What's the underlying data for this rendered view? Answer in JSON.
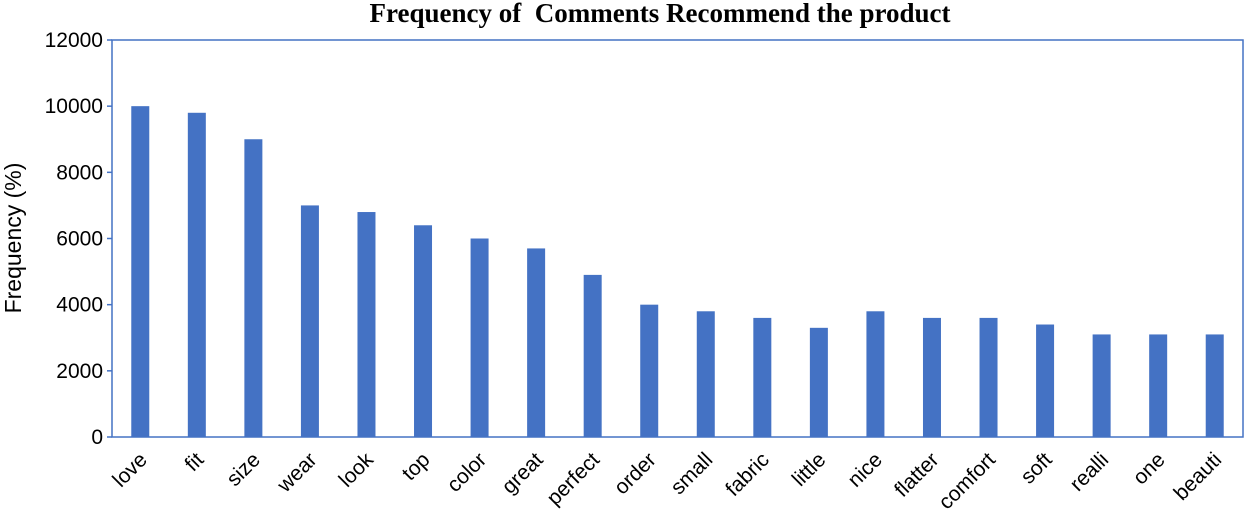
{
  "chart_data": {
    "type": "bar",
    "title": "Frequency of  Comments Recommend the product",
    "xlabel": "",
    "ylabel": "Frequency (%)",
    "ylim": [
      0,
      12000
    ],
    "yticks": [
      0,
      2000,
      4000,
      6000,
      8000,
      10000,
      12000
    ],
    "grid": false,
    "categories": [
      "love",
      "fit",
      "size",
      "wear",
      "look",
      "top",
      "color",
      "great",
      "perfect",
      "order",
      "small",
      "fabric",
      "little",
      "nice",
      "flatter",
      "comfort",
      "soft",
      "realli",
      "one",
      "beauti"
    ],
    "values": [
      10000,
      9800,
      9000,
      7000,
      6800,
      6400,
      6000,
      5700,
      4900,
      4000,
      3800,
      3600,
      3300,
      3800,
      3600,
      3600,
      3400,
      3100,
      3100,
      3100
    ],
    "colors": {
      "bar": "#4472c4",
      "frame": "#4472c4"
    }
  }
}
